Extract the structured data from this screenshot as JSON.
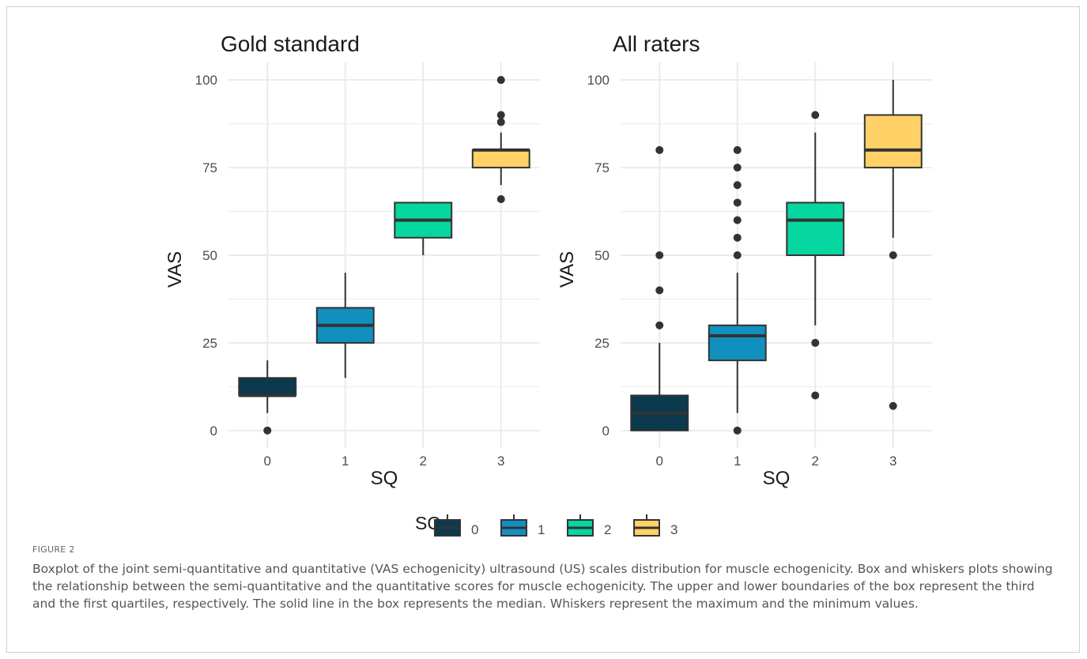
{
  "figure": {
    "label": "FIGURE 2",
    "caption": "Boxplot of the joint semi-quantitative and quantitative (VAS echogenicity) ultrasound (US) scales distribution for muscle echogenicity. Box and whiskers plots showing the relationship between the semi-quantitative and the quantitative scores for muscle echogenicity. The upper and lower boundaries of the box represent the third and the first quartiles, respectively. The solid line in the box represents the median. Whiskers represent the maximum and the minimum values."
  },
  "legend": {
    "title": "SQ",
    "placement": "bottom",
    "entries": [
      "0",
      "1",
      "2",
      "3"
    ]
  },
  "colors": {
    "sq0": "#0b3a4e",
    "sq1": "#1190bf",
    "sq2": "#06d6a0",
    "sq3": "#ffd166",
    "grid": "#ebebeb",
    "outline": "#333333",
    "text": "#1a1a1a",
    "tick": "#4d4d4d"
  },
  "chart_data": [
    {
      "type": "box",
      "title": "Gold standard",
      "xlabel": "SQ",
      "ylabel": "VAS",
      "categories": [
        "0",
        "1",
        "2",
        "3"
      ],
      "yticks": [
        0,
        25,
        50,
        75,
        100
      ],
      "ylim": [
        -5,
        105
      ],
      "grid": true,
      "boxes": [
        {
          "category": "0",
          "whisker_low": 5,
          "q1": 10,
          "median": 10,
          "q3": 15,
          "whisker_high": 20,
          "outliers": [
            0
          ]
        },
        {
          "category": "1",
          "whisker_low": 15,
          "q1": 25,
          "median": 30,
          "q3": 35,
          "whisker_high": 45,
          "outliers": []
        },
        {
          "category": "2",
          "whisker_low": 50,
          "q1": 55,
          "median": 60,
          "q3": 65,
          "whisker_high": 65,
          "outliers": []
        },
        {
          "category": "3",
          "whisker_low": 70,
          "q1": 75,
          "median": 80,
          "q3": 80,
          "whisker_high": 85,
          "outliers": [
            66,
            88,
            90,
            100
          ]
        }
      ]
    },
    {
      "type": "box",
      "title": "All raters",
      "xlabel": "SQ",
      "ylabel": "VAS",
      "categories": [
        "0",
        "1",
        "2",
        "3"
      ],
      "yticks": [
        0,
        25,
        50,
        75,
        100
      ],
      "ylim": [
        -5,
        105
      ],
      "grid": true,
      "boxes": [
        {
          "category": "0",
          "whisker_low": 0,
          "q1": 0,
          "median": 5,
          "q3": 10,
          "whisker_high": 25,
          "outliers": [
            30,
            40,
            50,
            80
          ]
        },
        {
          "category": "1",
          "whisker_low": 5,
          "q1": 20,
          "median": 27,
          "q3": 30,
          "whisker_high": 45,
          "outliers": [
            0,
            50,
            55,
            60,
            65,
            70,
            75,
            80
          ]
        },
        {
          "category": "2",
          "whisker_low": 30,
          "q1": 50,
          "median": 60,
          "q3": 65,
          "whisker_high": 85,
          "outliers": [
            10,
            25,
            90
          ]
        },
        {
          "category": "3",
          "whisker_low": 55,
          "q1": 75,
          "median": 80,
          "q3": 90,
          "whisker_high": 100,
          "outliers": [
            7,
            50
          ]
        }
      ]
    }
  ]
}
